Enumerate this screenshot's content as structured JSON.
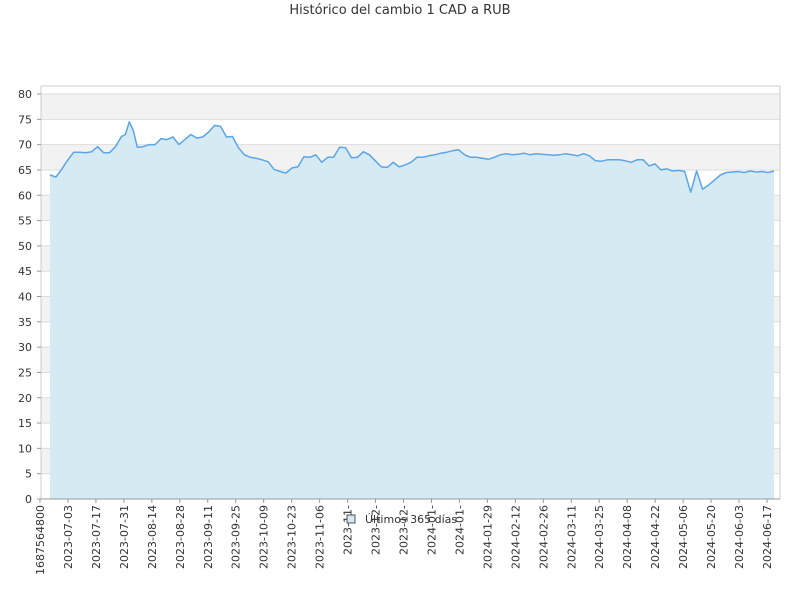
{
  "chart_data": {
    "type": "area",
    "title": "Histórico del cambio 1 CAD a RUB",
    "xlabel": "",
    "ylabel": "",
    "ylim": [
      0,
      80
    ],
    "y_ticks": [
      0,
      5,
      10,
      15,
      20,
      25,
      30,
      35,
      40,
      45,
      50,
      55,
      60,
      65,
      70,
      75,
      80
    ],
    "x_tick_labels": [
      "1687564800",
      "2023-07-03",
      "2023-07-17",
      "2023-07-31",
      "2023-08-14",
      "2023-08-28",
      "2023-09-11",
      "2023-09-25",
      "2023-10-09",
      "2023-10-23",
      "2023-11-06",
      "2023-11-",
      "2023-12-",
      "2023-12-",
      "2024-01-",
      "2024-01-",
      "2024-01-29",
      "2024-02-12",
      "2024-02-26",
      "2024-03-11",
      "2024-03-25",
      "2024-04-08",
      "2024-04-22",
      "2024-05-06",
      "2024-05-20",
      "2024-06-03",
      "2024-06-17"
    ],
    "grid": true,
    "legend_position": "bottom-center",
    "colors": {
      "line": "#5aa6e6",
      "fill": "#d4e9f2",
      "band": "#f2f2f2",
      "grid": "#dddddd"
    },
    "series": [
      {
        "name": "Últimos 365 días",
        "x": [
          0,
          3,
          6,
          9,
          12,
          15,
          18,
          21,
          24,
          27,
          30,
          33,
          36,
          38,
          40,
          42,
          44,
          47,
          50,
          53,
          56,
          59,
          62,
          65,
          68,
          71,
          74,
          77,
          80,
          83,
          86,
          89,
          92,
          95,
          98,
          101,
          104,
          107,
          110,
          113,
          116,
          119,
          122,
          125,
          128,
          131,
          134,
          137,
          140,
          143,
          146,
          149,
          152,
          155,
          158,
          161,
          164,
          167,
          170,
          173,
          176,
          179,
          182,
          185,
          188,
          191,
          194,
          197,
          200,
          203,
          206,
          209,
          212,
          215,
          218,
          221,
          224,
          227,
          230,
          233,
          236,
          239,
          242,
          245,
          248,
          251,
          254,
          257,
          260,
          263,
          266,
          269,
          272,
          275,
          278,
          281,
          284,
          287,
          290,
          293,
          296,
          299,
          302,
          305,
          308,
          311,
          314,
          317,
          320,
          323,
          326,
          329,
          332,
          335,
          338,
          341,
          344,
          347,
          350,
          353,
          356,
          359,
          362,
          365
        ],
        "values": [
          64.0,
          63.6,
          65.2,
          67.0,
          68.5,
          68.5,
          68.4,
          68.6,
          69.6,
          68.4,
          68.4,
          69.6,
          71.6,
          72.0,
          74.5,
          72.8,
          69.5,
          69.6,
          70.0,
          70.0,
          71.2,
          71.0,
          71.5,
          70.0,
          71.0,
          72.0,
          71.3,
          71.5,
          72.5,
          73.8,
          73.6,
          71.5,
          71.6,
          69.4,
          68.0,
          67.5,
          67.3,
          67.0,
          66.6,
          65.1,
          64.7,
          64.4,
          65.4,
          65.6,
          67.6,
          67.5,
          68.0,
          66.5,
          67.5,
          67.5,
          69.5,
          69.4,
          67.4,
          67.5,
          68.6,
          68.0,
          66.8,
          65.6,
          65.5,
          66.5,
          65.6,
          66.0,
          66.5,
          67.5,
          67.5,
          67.8,
          68.0,
          68.3,
          68.5,
          68.8,
          69.0,
          68.0,
          67.5,
          67.5,
          67.3,
          67.1,
          67.5,
          68.0,
          68.2,
          68.0,
          68.1,
          68.3,
          68.0,
          68.2,
          68.1,
          68.0,
          67.9,
          68.0,
          68.2,
          68.0,
          67.8,
          68.2,
          67.8,
          66.8,
          66.7,
          67.0,
          67.0,
          67.0,
          66.8,
          66.5,
          67.0,
          67.0,
          65.8,
          66.2,
          65.0,
          65.2,
          64.8,
          64.9,
          64.7,
          60.6,
          64.8,
          61.2,
          62.0,
          63.0,
          64.0,
          64.5,
          64.6,
          64.7,
          64.5,
          64.8,
          64.6,
          64.7,
          64.5,
          64.8
        ]
      }
    ]
  }
}
